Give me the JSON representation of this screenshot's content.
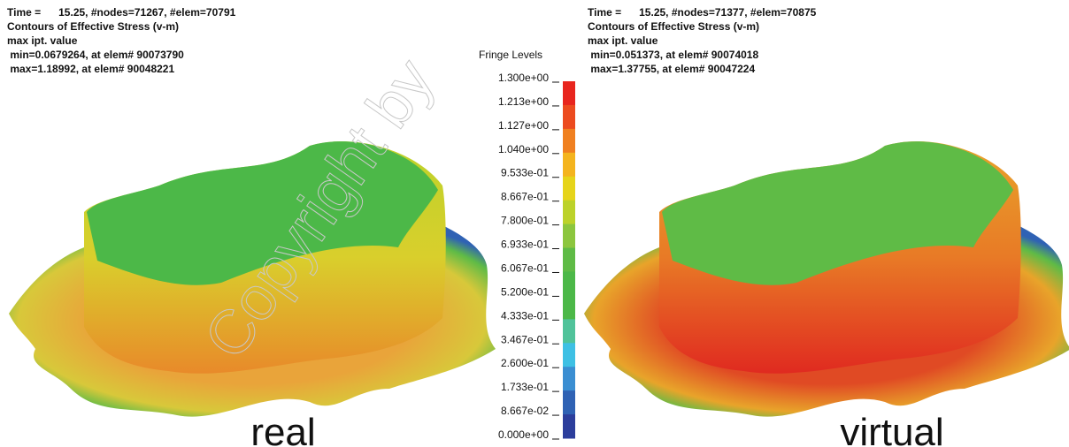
{
  "panels": [
    {
      "lines": [
        "Time =      15.25, #nodes=71267, #elem=70791",
        "Contours of Effective Stress (v-m)",
        "max ipt. value",
        " min=0.0679264, at elem# 90073790",
        " max=1.18992, at elem# 90048221"
      ],
      "label": "real"
    },
    {
      "lines": [
        "Time =      15.25, #nodes=71377, #elem=70875",
        "Contours of Effective Stress (v-m)",
        "max ipt. value",
        " min=0.051373, at elem# 90074018",
        " max=1.37755, at elem# 90047224"
      ],
      "label": "virtual"
    }
  ],
  "fringe": {
    "title": "Fringe Levels",
    "levels": [
      "1.300e+00",
      "1.213e+00",
      "1.127e+00",
      "1.040e+00",
      "9.533e-01",
      "8.667e-01",
      "7.800e-01",
      "6.933e-01",
      "6.067e-01",
      "5.200e-01",
      "4.333e-01",
      "3.467e-01",
      "2.600e-01",
      "1.733e-01",
      "8.667e-02",
      "0.000e+00"
    ],
    "colors": [
      "#e8251e",
      "#ec4b1f",
      "#f08020",
      "#f4b41e",
      "#e6d41a",
      "#bcd22a",
      "#8cc63e",
      "#5fbb46",
      "#4cb848",
      "#4cb848",
      "#50c39a",
      "#3ec0e4",
      "#3a8ed2",
      "#2f62b4",
      "#2c3e9c"
    ]
  },
  "watermark": "Copyright by"
}
